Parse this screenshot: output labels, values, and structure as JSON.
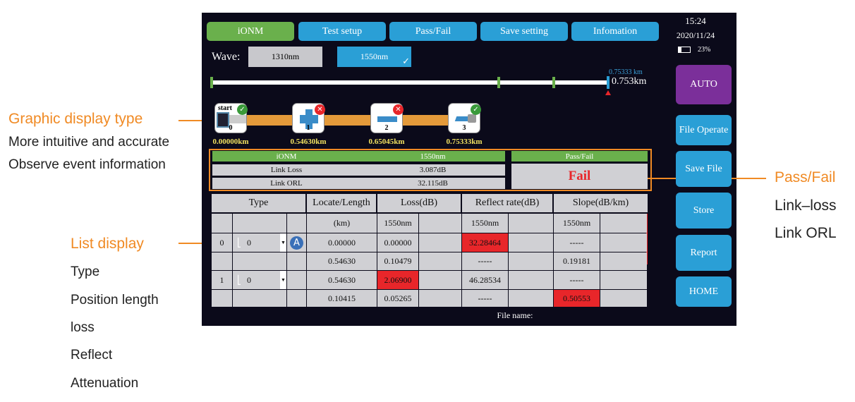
{
  "annotations": {
    "graphic_title": "Graphic display type",
    "graphic_lines": [
      "More intuitive and accurate",
      "Observe event information"
    ],
    "list_title": "List display",
    "list_lines": [
      "Type",
      "Position length",
      "loss",
      "Reflect",
      "Attenuation"
    ],
    "pf_title": "Pass/Fail",
    "pf_lines": [
      "Link–loss",
      "Link ORL"
    ]
  },
  "tabs": [
    {
      "label": "iONM",
      "active": true
    },
    {
      "label": "Test setup"
    },
    {
      "label": "Pass/Fail"
    },
    {
      "label": "Save setting"
    },
    {
      "label": "Infomation"
    }
  ],
  "status": {
    "time": "15:24",
    "date": "2020/11/24",
    "battery": "23%"
  },
  "wave": {
    "label": "Wave:",
    "options": [
      "1310nm",
      "1550nm"
    ],
    "selected": "1550nm"
  },
  "distance": {
    "marker_small": "0.75333 km",
    "marker_big": "0.753km"
  },
  "side_buttons": [
    "AUTO",
    "File Operate",
    "Save File",
    "Store",
    "Report",
    "HOME"
  ],
  "events": [
    {
      "label": "start",
      "num": "0",
      "dist": "0.00000km",
      "status": "pass"
    },
    {
      "num": "1",
      "dist": "0.54630km",
      "status": "fail"
    },
    {
      "num": "2",
      "dist": "0.65045km",
      "status": "fail"
    },
    {
      "num": "3",
      "dist": "0.75333km",
      "status": "pass"
    }
  ],
  "summary": {
    "mode": "iONM",
    "wave": "1550nm",
    "link_loss_label": "Link Loss",
    "link_loss": "3.087dB",
    "link_orl_label": "Link ORL",
    "link_orl": "32.115dB",
    "pf_header": "Pass/Fail",
    "result": "Fail"
  },
  "table": {
    "headers": [
      "Type",
      "Locate/Length",
      "Loss(dB)",
      "Reflect rate(dB)",
      "Slope(dB/km)"
    ],
    "rows": [
      [
        "",
        "",
        "",
        "(km)",
        "1550nm",
        "",
        "1550nm",
        "",
        "1550nm",
        ""
      ],
      [
        "0",
        "0",
        "A",
        "0.00000",
        "0.00000",
        "",
        "32.28464",
        "",
        "-----",
        ""
      ],
      [
        "",
        "",
        "",
        "0.54630",
        "0.10479",
        "",
        "-----",
        "",
        "0.19181",
        ""
      ],
      [
        "1",
        "0",
        "",
        "0.54630",
        "2.06900",
        "",
        "46.28534",
        "",
        "-----",
        ""
      ],
      [
        "",
        "",
        "",
        "0.10415",
        "0.05265",
        "",
        "-----",
        "",
        "0.50553",
        ""
      ]
    ],
    "highlighted": [
      [
        1,
        6
      ],
      [
        3,
        4
      ],
      [
        4,
        8
      ]
    ]
  },
  "file_name": "File name:",
  "colors": {
    "tab": "#2a9fd6",
    "active": "#6ab04c",
    "auto": "#7b2f9a",
    "fail": "#e8262a",
    "annotation": "#f08a24"
  }
}
